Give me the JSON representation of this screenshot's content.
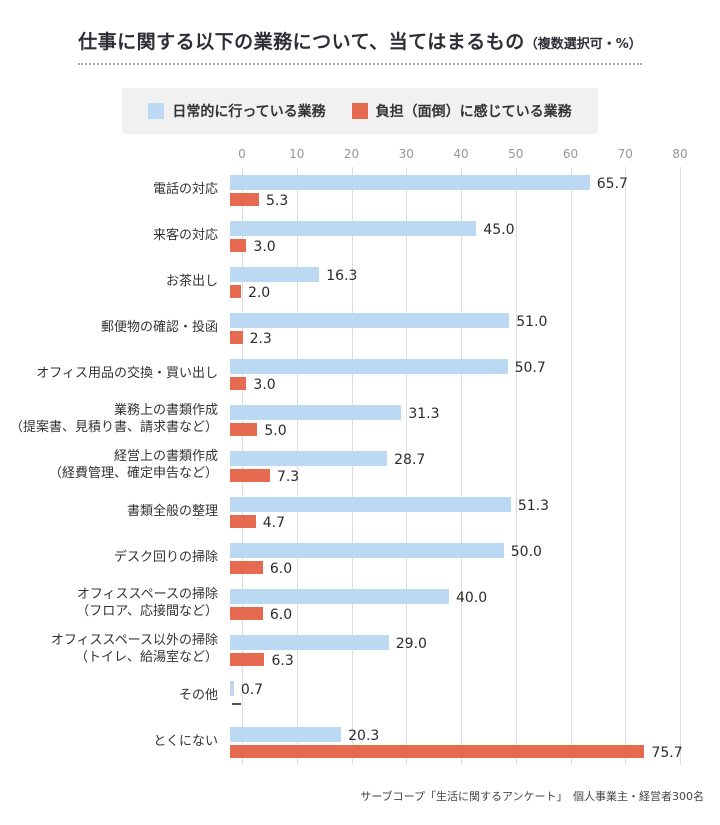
{
  "title": {
    "main": "仕事に関する以下の業務について、当てはまるもの",
    "note": "（複数選択可・%）"
  },
  "legend": {
    "items": [
      {
        "label": "日常的に行っている業務",
        "color": "#bcd9f4"
      },
      {
        "label": "負担（面倒）に感じている業務",
        "color": "#e56a50"
      }
    ]
  },
  "footer": {
    "source": "サーブコープ「生活に関するアンケート」　個人事業主・経営者300名"
  },
  "chart_data": {
    "type": "bar",
    "orientation": "horizontal",
    "title": "仕事に関する以下の業務について、当てはまるもの（複数選択可・%）",
    "xlabel": "",
    "ylabel": "",
    "xlim": [
      0,
      80
    ],
    "x_ticks": [
      0,
      10,
      20,
      30,
      40,
      50,
      60,
      70,
      80
    ],
    "grid": true,
    "legend_position": "top",
    "no_data_marker": "—",
    "colors": {
      "daily": "#bcd9f4",
      "burden": "#e56a50",
      "gridline": "#dddddd"
    },
    "categories": [
      [
        "電話の対応"
      ],
      [
        "来客の対応"
      ],
      [
        "お茶出し"
      ],
      [
        "郵便物の確認・投函"
      ],
      [
        "オフィス用品の交換・買い出し"
      ],
      [
        "業務上の書類作成",
        "（提案書、見積り書、請求書など）"
      ],
      [
        "経営上の書類作成",
        "（経費管理、確定申告など）"
      ],
      [
        "書類全般の整理"
      ],
      [
        "デスク回りの掃除"
      ],
      [
        "オフィススペースの掃除",
        "（フロア、応接間など）"
      ],
      [
        "オフィススペース以外の掃除",
        "（トイレ、給湯室など）"
      ],
      [
        "その他"
      ],
      [
        "とくにない"
      ]
    ],
    "series": [
      {
        "name": "日常的に行っている業務",
        "values": [
          65.7,
          45.0,
          16.3,
          51.0,
          50.7,
          31.3,
          28.7,
          51.3,
          50.0,
          40.0,
          29.0,
          0.7,
          20.3
        ]
      },
      {
        "name": "負担（面倒）に感じている業務",
        "values": [
          5.3,
          3.0,
          2.0,
          2.3,
          3.0,
          5.0,
          7.3,
          4.7,
          6.0,
          6.0,
          6.3,
          null,
          75.7
        ]
      }
    ]
  }
}
